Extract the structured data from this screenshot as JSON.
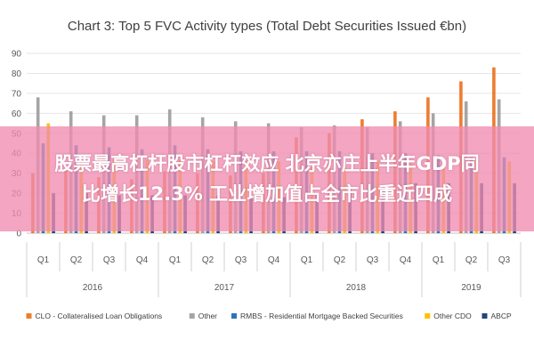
{
  "chart_data": {
    "type": "bar",
    "title": "Chart 3: Top 5 FVC Activity types (Total Debt Securities Issued €bn)",
    "ylim": [
      0,
      90
    ],
    "yticks": [
      0,
      10,
      20,
      30,
      40,
      50,
      60,
      70,
      80,
      90
    ],
    "grid": true,
    "legend_position": "bottom",
    "categories": [
      "Q1",
      "Q2",
      "Q3",
      "Q4",
      "Q1",
      "Q2",
      "Q3",
      "Q4",
      "Q1",
      "Q2",
      "Q3",
      "Q4",
      "Q1",
      "Q2",
      "Q3"
    ],
    "year_groups": [
      {
        "label": "2016",
        "count": 4
      },
      {
        "label": "2017",
        "count": 4
      },
      {
        "label": "2018",
        "count": 4
      },
      {
        "label": "2019",
        "count": 3
      }
    ],
    "series": [
      {
        "name": "CLO - Collateralised Loan Obligations",
        "color": "#ED7D31",
        "values": [
          30,
          32,
          28,
          27,
          31,
          30,
          29,
          30,
          48,
          50,
          57,
          61,
          68,
          76,
          83
        ]
      },
      {
        "name": "Other",
        "color": "#A5A5A5",
        "values": [
          68,
          61,
          59,
          59,
          62,
          58,
          56,
          55,
          53,
          54,
          53,
          56,
          60,
          66,
          67
        ]
      },
      {
        "name": "RMBS - Residential Mortgage Backed Securities",
        "color": "#2E75B6",
        "values": [
          45,
          44,
          43,
          42,
          44,
          42,
          41,
          41,
          41,
          41,
          40,
          40,
          39,
          38,
          38
        ]
      },
      {
        "name": "Other CDO",
        "color": "#FFC000",
        "values": [
          55,
          36,
          37,
          37,
          37,
          36,
          36,
          36,
          33,
          33,
          36,
          35,
          36,
          37,
          36
        ]
      },
      {
        "name": "ABCP",
        "color": "#264478",
        "values": [
          20,
          20,
          19,
          19,
          19,
          19,
          18,
          18,
          20,
          22,
          24,
          25,
          25,
          25,
          25
        ]
      }
    ]
  },
  "overlay": {
    "line1": "股票最高杠杆股市杠杆效应 北京亦庄上半年GDP同",
    "line2": "比增长12.3% 工业增加值占全市比重近四成"
  }
}
